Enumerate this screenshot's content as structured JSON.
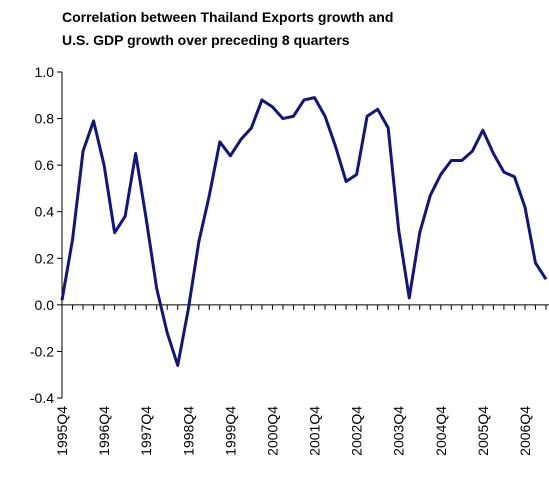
{
  "chart_data": {
    "type": "line",
    "title": [
      "Correlation between Thailand Exports growth and",
      "U.S. GDP growth over preceding 8 quarters"
    ],
    "categories": [
      "1995Q4",
      null,
      null,
      null,
      "1996Q4",
      null,
      null,
      null,
      "1997Q4",
      null,
      null,
      null,
      "1998Q4",
      null,
      null,
      null,
      "1999Q4",
      null,
      null,
      null,
      "2000Q4",
      null,
      null,
      null,
      "2001Q4",
      null,
      null,
      null,
      "2002Q4",
      null,
      null,
      null,
      "2003Q4",
      null,
      null,
      null,
      "2004Q4",
      null,
      null,
      null,
      "2005Q4",
      null,
      null,
      null,
      "2006Q4",
      null,
      null
    ],
    "series": [
      {
        "color": "#14147a",
        "values": [
          0.02,
          0.28,
          0.66,
          0.79,
          0.6,
          0.31,
          0.38,
          0.65,
          0.37,
          0.07,
          -0.12,
          -0.26,
          -0.02,
          0.27,
          0.47,
          0.7,
          0.64,
          0.71,
          0.76,
          0.88,
          0.85,
          0.8,
          0.81,
          0.88,
          0.89,
          0.81,
          0.68,
          0.53,
          0.56,
          0.81,
          0.84,
          0.76,
          0.32,
          0.03,
          0.31,
          0.47,
          0.56,
          0.62,
          0.62,
          0.66,
          0.75,
          0.65,
          0.57,
          0.55,
          0.42,
          0.18,
          0.11
        ]
      }
    ],
    "ylim": [
      -0.4,
      1.0
    ],
    "yticks": [
      {
        "value": -0.4,
        "label": "-0.4"
      },
      {
        "value": -0.2,
        "label": "-0.2"
      },
      {
        "value": 0,
        "label": "0.0"
      },
      {
        "value": 0.2,
        "label": "0.2"
      },
      {
        "value": 0.4,
        "label": "0.4"
      },
      {
        "value": 0.6,
        "label": "0.6"
      },
      {
        "value": 0.8,
        "label": "0.8"
      },
      {
        "value": 1.0,
        "label": "1.0"
      }
    ]
  }
}
